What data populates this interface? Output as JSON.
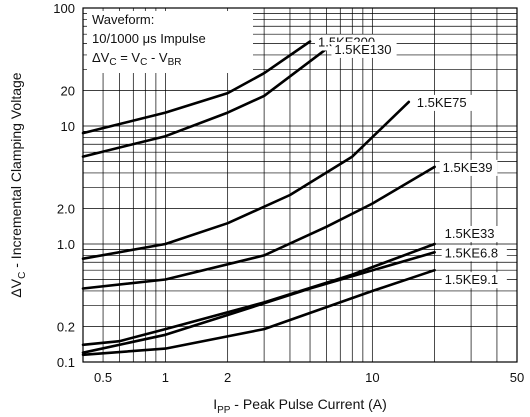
{
  "chart_data": {
    "type": "line",
    "title": "",
    "xlabel": {
      "symbol": "I",
      "subscript": "PP",
      "text": " - Peak Pulse Current (A)"
    },
    "ylabel": {
      "prefix": "ΔV",
      "subscript": "C",
      "text": " - Incremental Clamping Voltage"
    },
    "xscale": "log",
    "yscale": "log",
    "xlim": [
      0.4,
      50
    ],
    "ylim": [
      0.1,
      100
    ],
    "grid": true,
    "x_ticks": [
      {
        "value": 0.5,
        "label": "0.5"
      },
      {
        "value": 1,
        "label": "1"
      },
      {
        "value": 2,
        "label": "2"
      },
      {
        "value": 10,
        "label": "10"
      },
      {
        "value": 50,
        "label": "50"
      }
    ],
    "y_ticks": [
      {
        "value": 0.1,
        "label": "0.1"
      },
      {
        "value": 0.2,
        "label": "0.2"
      },
      {
        "value": 1.0,
        "label": "1.0"
      },
      {
        "value": 2.0,
        "label": "2.0"
      },
      {
        "value": 10,
        "label": "10"
      },
      {
        "value": 20,
        "label": "20"
      },
      {
        "value": 100,
        "label": "100"
      }
    ],
    "annotation": {
      "line1": "Waveform:",
      "line2": "10/1000 μs Impulse",
      "line3": {
        "a": "ΔV",
        "a_sub": "C",
        "b": " = V",
        "b_sub": "C",
        "c": " - V",
        "c_sub": "BR"
      }
    },
    "series": [
      {
        "name": "1.5KE200",
        "x": [
          0.4,
          1,
          2,
          3,
          5
        ],
        "y": [
          8.7,
          13,
          19,
          28,
          52
        ]
      },
      {
        "name": "1.5KE130",
        "x": [
          0.4,
          1,
          2,
          3,
          6
        ],
        "y": [
          5.5,
          8.2,
          13,
          18,
          45
        ]
      },
      {
        "name": "1.5KE75",
        "x": [
          0.4,
          1,
          2,
          4,
          8,
          15
        ],
        "y": [
          0.75,
          1.0,
          1.5,
          2.6,
          5.5,
          16
        ]
      },
      {
        "name": "1.5KE39",
        "x": [
          0.4,
          1,
          3,
          6,
          10,
          20
        ],
        "y": [
          0.42,
          0.5,
          0.8,
          1.4,
          2.2,
          4.5
        ]
      },
      {
        "name": "1.5KE33",
        "x": [
          0.4,
          0.6,
          1,
          3,
          8,
          20
        ],
        "y": [
          0.14,
          0.15,
          0.19,
          0.32,
          0.55,
          1.0
        ]
      },
      {
        "name": "1.5KE6.8",
        "x": [
          0.4,
          1,
          2,
          5,
          20
        ],
        "y": [
          0.12,
          0.17,
          0.25,
          0.42,
          0.85
        ]
      },
      {
        "name": "1.5KE9.1",
        "x": [
          0.4,
          1,
          3,
          10,
          20
        ],
        "y": [
          0.115,
          0.13,
          0.19,
          0.4,
          0.6
        ]
      }
    ]
  }
}
